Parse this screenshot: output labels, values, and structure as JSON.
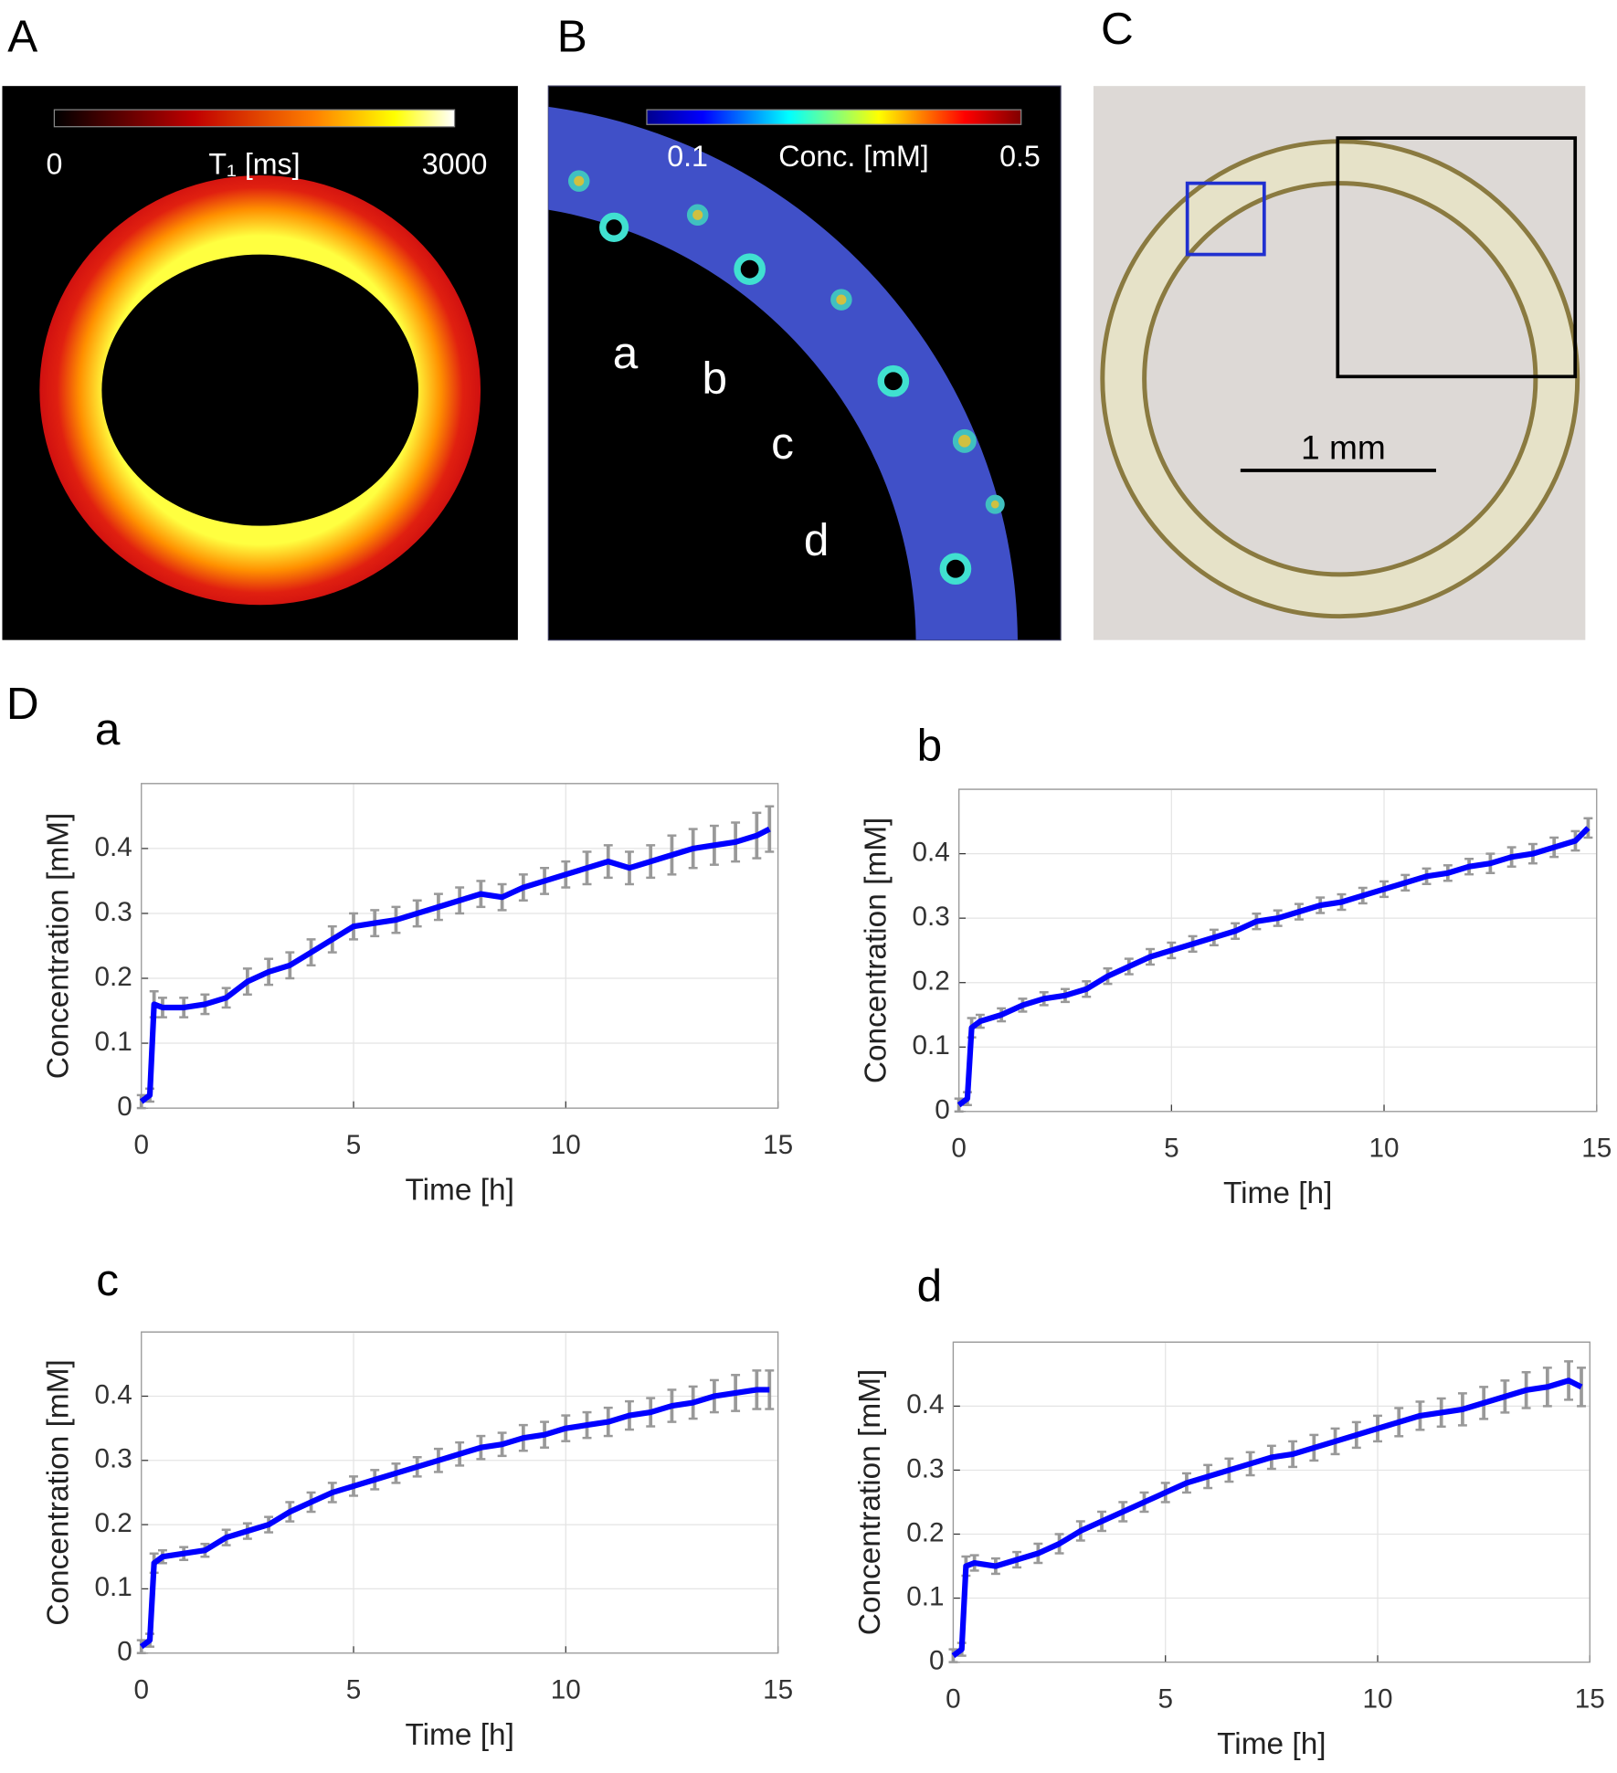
{
  "panels": {
    "A": {
      "label": "A",
      "colorbar_min": 0,
      "colorbar_label": "T₁ [ms]",
      "colorbar_max": 3000
    },
    "B": {
      "label": "B",
      "colorbar_min": 0.1,
      "colorbar_label": "Conc. [mM]",
      "colorbar_max": 0.5,
      "regions": [
        "a",
        "b",
        "c",
        "d"
      ]
    },
    "C": {
      "label": "C",
      "scale_bar": "1 mm"
    },
    "D": {
      "label": "D"
    }
  },
  "chart_data": [
    {
      "type": "line",
      "title": "a",
      "xlabel": "Time [h]",
      "ylabel": "Concentration [mM]",
      "color": "#0000ff",
      "error_color": "#999999",
      "grid": true,
      "xlim": [
        0,
        15
      ],
      "ylim": [
        0,
        0.5
      ],
      "xticks": [
        0,
        5,
        10,
        15
      ],
      "yticks": [
        0,
        0.1,
        0.2,
        0.3,
        0.4
      ],
      "x": [
        0,
        0.2,
        0.3,
        0.5,
        1,
        1.5,
        2,
        2.5,
        3,
        3.5,
        4,
        4.5,
        5,
        5.5,
        6,
        6.5,
        7,
        7.5,
        8,
        8.5,
        9,
        9.5,
        10,
        10.5,
        11,
        11.5,
        12,
        12.5,
        13,
        13.5,
        14,
        14.5,
        14.8
      ],
      "values": [
        0.01,
        0.02,
        0.16,
        0.155,
        0.155,
        0.16,
        0.17,
        0.195,
        0.21,
        0.22,
        0.24,
        0.26,
        0.28,
        0.285,
        0.29,
        0.3,
        0.31,
        0.32,
        0.33,
        0.325,
        0.34,
        0.35,
        0.36,
        0.37,
        0.38,
        0.37,
        0.38,
        0.39,
        0.4,
        0.405,
        0.41,
        0.42,
        0.43
      ],
      "errors": [
        0.01,
        0.01,
        0.02,
        0.015,
        0.015,
        0.015,
        0.015,
        0.02,
        0.02,
        0.02,
        0.02,
        0.02,
        0.02,
        0.02,
        0.02,
        0.02,
        0.02,
        0.02,
        0.02,
        0.02,
        0.02,
        0.02,
        0.02,
        0.025,
        0.025,
        0.025,
        0.025,
        0.03,
        0.03,
        0.03,
        0.03,
        0.035,
        0.035
      ]
    },
    {
      "type": "line",
      "title": "b",
      "xlabel": "Time [h]",
      "ylabel": "Concentration [mM]",
      "color": "#0000ff",
      "error_color": "#999999",
      "grid": true,
      "xlim": [
        0,
        15
      ],
      "ylim": [
        0,
        0.5
      ],
      "xticks": [
        0,
        5,
        10,
        15
      ],
      "yticks": [
        0,
        0.1,
        0.2,
        0.3,
        0.4
      ],
      "x": [
        0,
        0.2,
        0.3,
        0.5,
        1,
        1.5,
        2,
        2.5,
        3,
        3.5,
        4,
        4.5,
        5,
        5.5,
        6,
        6.5,
        7,
        7.5,
        8,
        8.5,
        9,
        9.5,
        10,
        10.5,
        11,
        11.5,
        12,
        12.5,
        13,
        13.5,
        14,
        14.5,
        14.8
      ],
      "values": [
        0.01,
        0.02,
        0.13,
        0.14,
        0.15,
        0.165,
        0.175,
        0.18,
        0.19,
        0.21,
        0.225,
        0.24,
        0.25,
        0.26,
        0.27,
        0.28,
        0.295,
        0.3,
        0.31,
        0.32,
        0.325,
        0.335,
        0.345,
        0.355,
        0.365,
        0.37,
        0.38,
        0.385,
        0.395,
        0.4,
        0.41,
        0.42,
        0.44
      ],
      "errors": [
        0.01,
        0.01,
        0.015,
        0.01,
        0.01,
        0.01,
        0.01,
        0.01,
        0.012,
        0.012,
        0.012,
        0.012,
        0.012,
        0.012,
        0.012,
        0.012,
        0.012,
        0.012,
        0.012,
        0.012,
        0.012,
        0.012,
        0.012,
        0.012,
        0.012,
        0.012,
        0.012,
        0.015,
        0.015,
        0.015,
        0.015,
        0.015,
        0.015
      ]
    },
    {
      "type": "line",
      "title": "c",
      "xlabel": "Time [h]",
      "ylabel": "Concentration [mM]",
      "color": "#0000ff",
      "error_color": "#999999",
      "grid": true,
      "xlim": [
        0,
        15
      ],
      "ylim": [
        0,
        0.5
      ],
      "xticks": [
        0,
        5,
        10,
        15
      ],
      "yticks": [
        0,
        0.1,
        0.2,
        0.3,
        0.4
      ],
      "x": [
        0,
        0.2,
        0.3,
        0.5,
        1,
        1.5,
        2,
        2.5,
        3,
        3.5,
        4,
        4.5,
        5,
        5.5,
        6,
        6.5,
        7,
        7.5,
        8,
        8.5,
        9,
        9.5,
        10,
        10.5,
        11,
        11.5,
        12,
        12.5,
        13,
        13.5,
        14,
        14.5,
        14.8
      ],
      "values": [
        0.01,
        0.02,
        0.14,
        0.15,
        0.155,
        0.16,
        0.18,
        0.19,
        0.2,
        0.22,
        0.235,
        0.25,
        0.26,
        0.27,
        0.28,
        0.29,
        0.3,
        0.31,
        0.32,
        0.325,
        0.335,
        0.34,
        0.35,
        0.355,
        0.36,
        0.37,
        0.375,
        0.385,
        0.39,
        0.4,
        0.405,
        0.41,
        0.41
      ],
      "errors": [
        0.01,
        0.01,
        0.015,
        0.01,
        0.01,
        0.01,
        0.012,
        0.012,
        0.012,
        0.015,
        0.015,
        0.015,
        0.015,
        0.015,
        0.015,
        0.015,
        0.018,
        0.018,
        0.018,
        0.018,
        0.02,
        0.02,
        0.02,
        0.02,
        0.022,
        0.022,
        0.022,
        0.025,
        0.025,
        0.025,
        0.028,
        0.03,
        0.03
      ]
    },
    {
      "type": "line",
      "title": "d",
      "xlabel": "Time [h]",
      "ylabel": "Concentration [mM]",
      "color": "#0000ff",
      "error_color": "#999999",
      "grid": true,
      "xlim": [
        0,
        15
      ],
      "ylim": [
        0,
        0.5
      ],
      "xticks": [
        0,
        5,
        10,
        15
      ],
      "yticks": [
        0,
        0.1,
        0.2,
        0.3,
        0.4
      ],
      "x": [
        0,
        0.2,
        0.3,
        0.5,
        1,
        1.5,
        2,
        2.5,
        3,
        3.5,
        4,
        4.5,
        5,
        5.5,
        6,
        6.5,
        7,
        7.5,
        8,
        8.5,
        9,
        9.5,
        10,
        10.5,
        11,
        11.5,
        12,
        12.5,
        13,
        13.5,
        14,
        14.5,
        14.8
      ],
      "values": [
        0.01,
        0.02,
        0.15,
        0.155,
        0.15,
        0.16,
        0.17,
        0.185,
        0.205,
        0.22,
        0.235,
        0.25,
        0.265,
        0.28,
        0.29,
        0.3,
        0.31,
        0.32,
        0.325,
        0.335,
        0.345,
        0.355,
        0.365,
        0.375,
        0.385,
        0.39,
        0.395,
        0.405,
        0.415,
        0.425,
        0.43,
        0.44,
        0.43
      ],
      "errors": [
        0.01,
        0.01,
        0.015,
        0.012,
        0.012,
        0.012,
        0.015,
        0.015,
        0.015,
        0.015,
        0.015,
        0.015,
        0.015,
        0.015,
        0.018,
        0.018,
        0.018,
        0.018,
        0.02,
        0.02,
        0.02,
        0.02,
        0.02,
        0.022,
        0.022,
        0.022,
        0.025,
        0.025,
        0.025,
        0.028,
        0.03,
        0.03,
        0.03
      ]
    }
  ]
}
